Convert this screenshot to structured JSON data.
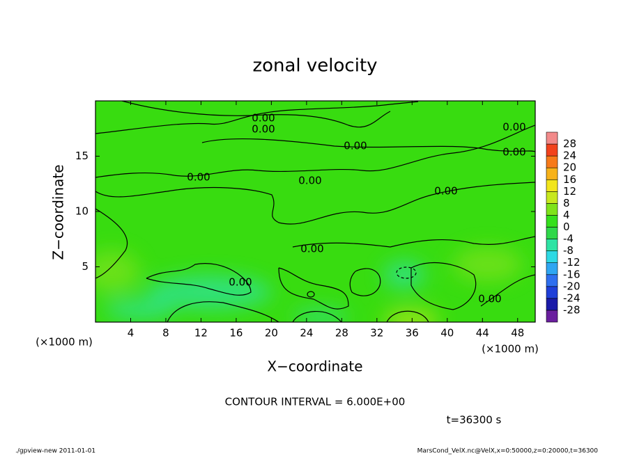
{
  "chart_data": {
    "type": "contour",
    "title": "zonal velocity",
    "x_label": "X−coordinate",
    "y_label": "Z−coordinate",
    "x_unit": "(×1000 m)",
    "y_unit": "(×1000 m)",
    "xlim": [
      0,
      50
    ],
    "ylim": [
      0,
      20
    ],
    "xticks": [
      4,
      8,
      12,
      16,
      20,
      24,
      28,
      32,
      36,
      40,
      44,
      48
    ],
    "yticks": [
      5,
      10,
      15
    ],
    "colorbar": {
      "levels": [
        -28,
        -24,
        -20,
        -16,
        -12,
        -8,
        -4,
        0,
        4,
        8,
        12,
        16,
        20,
        24,
        28
      ],
      "colors": [
        "#6a1f9e",
        "#1a1aa8",
        "#1f3fd8",
        "#2f6fef",
        "#2fa6f2",
        "#2ed9e4",
        "#2ee3a4",
        "#2fd84a",
        "#35e01c",
        "#7fe31a",
        "#c8e81e",
        "#f2e51c",
        "#f7b21a",
        "#f77a1a",
        "#f2421c",
        "#f28a8a"
      ]
    },
    "contour_labels": [
      {
        "value": 0,
        "label": "0.00"
      },
      {
        "value": 0,
        "label": "0.00"
      },
      {
        "value": 0,
        "label": "0.00"
      },
      {
        "value": 0,
        "label": "0.00"
      },
      {
        "value": 0,
        "label": "0.00"
      },
      {
        "value": 0,
        "label": "0.00"
      },
      {
        "value": 0,
        "label": "0.00"
      },
      {
        "value": 0,
        "label": "0.00"
      },
      {
        "value": 0,
        "label": "0.00"
      },
      {
        "value": 0,
        "label": "0.00"
      },
      {
        "value": 0,
        "label": "0.00"
      }
    ],
    "contour_interval": "CONTOUR INTERVAL = 6.000E+00",
    "time": "t=36300 s",
    "footer_left": "./gpview-new   2011-01-01",
    "footer_right": "MarsCond_VelX.nc@VelX,x=0:50000,z=0:20000,t=36300"
  }
}
